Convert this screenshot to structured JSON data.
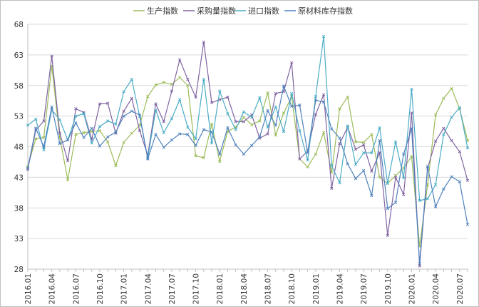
{
  "chart_data": {
    "type": "line",
    "title": "",
    "xlabel": "",
    "ylabel": "",
    "ylim": [
      28,
      68
    ],
    "yticks": [
      28,
      33,
      38,
      43,
      48,
      53,
      58,
      63,
      68
    ],
    "grid": "horizontal",
    "legend_position": "top",
    "x": [
      "2016.01",
      "2016.02",
      "2016.03",
      "2016.04",
      "2016.05",
      "2016.06",
      "2016.07",
      "2016.08",
      "2016.09",
      "2016.10",
      "2016.11",
      "2016.12",
      "2017.01",
      "2017.02",
      "2017.03",
      "2017.04",
      "2017.05",
      "2017.06",
      "2017.07",
      "2017.08",
      "2017.09",
      "2017.10",
      "2017.11",
      "2017.12",
      "2018.01",
      "2018.02",
      "2018.03",
      "2018.04",
      "2018.05",
      "2018.06",
      "2018.07",
      "2018.08",
      "2018.09",
      "2018.10",
      "2018.11",
      "2018.12",
      "2019.01",
      "2019.02",
      "2019.03",
      "2019.04",
      "2019.05",
      "2019.06",
      "2019.07",
      "2019.08",
      "2019.09",
      "2019.10",
      "2019.11",
      "2019.12",
      "2020.01",
      "2020.02",
      "2020.03",
      "2020.04",
      "2020.05",
      "2020.06",
      "2020.07",
      "2020.08"
    ],
    "xtick_labels": [
      "2016.01",
      "2016.04",
      "2016.07",
      "2016.10",
      "2017.01",
      "2017.04",
      "2017.07",
      "2017.10",
      "2018.01",
      "2018.04",
      "2018.07",
      "2018.10",
      "2019.01",
      "2019.04",
      "2019.07",
      "2019.10",
      "2020.01",
      "2020.04",
      "2020.07"
    ],
    "series": [
      {
        "name": "生产指数",
        "color": "#9bbb59",
        "values": [
          44.8,
          49.3,
          49.5,
          61.2,
          49.5,
          42.6,
          50.0,
          50.3,
          50.5,
          50.6,
          48.8,
          44.9,
          48.7,
          50.2,
          51.5,
          56.2,
          58.1,
          58.5,
          58.2,
          59.3,
          58.0,
          46.5,
          46.2,
          51.7,
          45.6,
          50.5,
          51.2,
          52.8,
          51.6,
          52.2,
          56.8,
          49.9,
          53.5,
          56.2,
          46.0,
          44.7,
          46.8,
          50.3,
          43.8,
          54.2,
          56.1,
          48.8,
          48.7,
          50.0,
          43.0,
          42.0,
          43.3,
          44.5,
          46.4,
          31.7,
          41.8,
          53.2,
          55.9,
          57.5,
          54.2,
          49.0
        ]
      },
      {
        "name": "采购量指数",
        "color": "#8064a2",
        "values": [
          44.3,
          50.7,
          52.2,
          62.8,
          50.2,
          45.7,
          54.2,
          53.6,
          49.2,
          55.0,
          55.1,
          50.2,
          53.8,
          55.9,
          50.6,
          46.6,
          55.0,
          52.1,
          57.1,
          62.2,
          59.0,
          56.1,
          65.1,
          55.2,
          55.7,
          56.1,
          52.1,
          52.1,
          53.2,
          49.4,
          50.1,
          56.7,
          57.0,
          61.7,
          46.0,
          47.3,
          53.3,
          56.5,
          41.2,
          48.5,
          51.2,
          47.6,
          48.3,
          44.0,
          47.0,
          33.5,
          43.0,
          40.2,
          53.5,
          28.5,
          44.5,
          48.9,
          51.0,
          49.0,
          47.2,
          42.5
        ]
      },
      {
        "name": "进口指数",
        "color": "#4bacc6",
        "values": [
          51.5,
          52.5,
          47.5,
          54.0,
          52.4,
          49.1,
          53.0,
          53.4,
          48.6,
          51.3,
          52.2,
          51.7,
          57.0,
          59.0,
          52.9,
          46.1,
          54.0,
          50.3,
          52.6,
          55.7,
          51.2,
          49.3,
          59.0,
          48.6,
          57.1,
          53.4,
          50.8,
          53.7,
          52.8,
          56.0,
          51.2,
          54.5,
          50.5,
          56.7,
          50.6,
          45.8,
          56.2,
          66.0,
          44.9,
          42.1,
          51.4,
          45.1,
          47.0,
          47.0,
          51.1,
          42.0,
          48.8,
          42.9,
          57.4,
          39.2,
          39.5,
          41.8,
          50.0,
          52.8,
          54.4,
          47.8
        ]
      },
      {
        "name": "原材料库存指数",
        "color": "#4f81bd",
        "values": [
          44.5,
          51.0,
          48.0,
          54.5,
          48.5,
          49.1,
          51.9,
          49.5,
          51.0,
          48.1,
          49.6,
          50.4,
          53.0,
          53.8,
          53.2,
          46.0,
          50.0,
          47.9,
          49.1,
          50.1,
          50.0,
          48.2,
          50.8,
          50.4,
          46.8,
          51.1,
          48.3,
          46.8,
          48.2,
          49.6,
          53.9,
          51.5,
          57.9,
          54.6,
          54.8,
          47.0,
          55.6,
          55.3,
          50.9,
          49.4,
          45.2,
          42.8,
          44.1,
          40.0,
          49.0,
          37.9,
          38.9,
          46.8,
          51.0,
          28.9,
          44.8,
          38.2,
          41.1,
          43.1,
          42.3,
          35.3
        ]
      }
    ]
  }
}
